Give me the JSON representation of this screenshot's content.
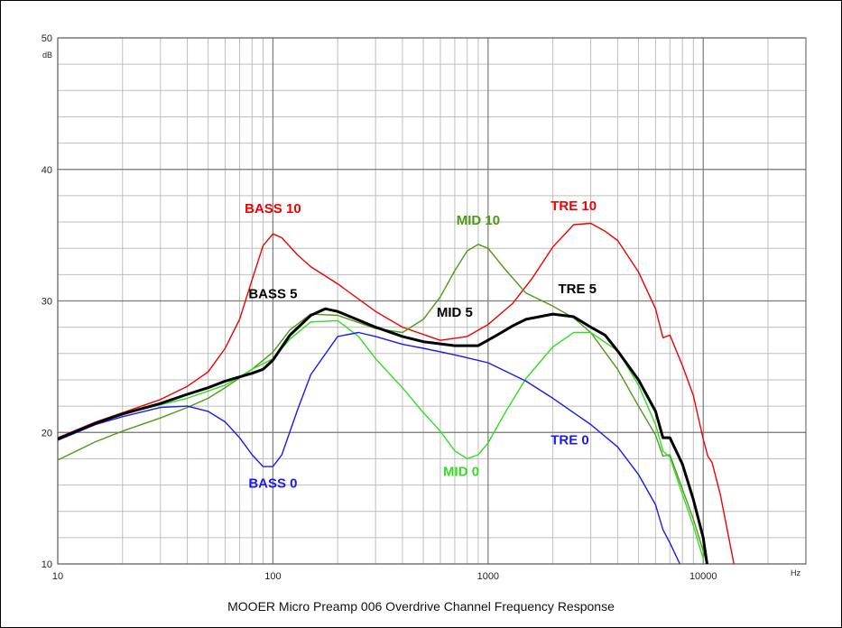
{
  "caption": "MOOER Micro Preamp 006 Overdrive Channel Frequency Response",
  "chart_data": {
    "type": "line",
    "title": "MOOER Micro Preamp 006 Overdrive Channel Frequency Response",
    "x_scale": "log",
    "xlim": [
      10,
      30000
    ],
    "ylim": [
      10,
      50
    ],
    "x_ticks": [
      10,
      100,
      1000,
      10000
    ],
    "x_tick_labels": [
      "10",
      "100",
      "1000",
      "10000"
    ],
    "y_ticks": [
      10,
      20,
      30,
      40,
      50
    ],
    "y_tick_labels": [
      "10",
      "20",
      "30",
      "40",
      "50"
    ],
    "xunit": "Hz",
    "yunit": "dB",
    "grid": true,
    "series": [
      {
        "name": "BASS 10",
        "color": "#ee0000",
        "width": 1.4,
        "label_x": 100,
        "label_y": 36.7,
        "points": [
          [
            10,
            19.6
          ],
          [
            15,
            20.8
          ],
          [
            20,
            21.5
          ],
          [
            30,
            22.5
          ],
          [
            40,
            23.5
          ],
          [
            50,
            24.6
          ],
          [
            60,
            26.4
          ],
          [
            70,
            28.6
          ],
          [
            80,
            31.6
          ],
          [
            90,
            34.2
          ],
          [
            100,
            35.1
          ],
          [
            110,
            34.8
          ],
          [
            130,
            33.5
          ],
          [
            150,
            32.6
          ],
          [
            200,
            31.3
          ],
          [
            300,
            29.2
          ],
          [
            400,
            28.0
          ],
          [
            600,
            27.0
          ],
          [
            800,
            27.3
          ],
          [
            1000,
            28.2
          ],
          [
            1300,
            29.8
          ],
          [
            1600,
            31.7
          ],
          [
            2000,
            34.1
          ],
          [
            2500,
            35.8
          ],
          [
            3000,
            35.9
          ],
          [
            3500,
            35.3
          ],
          [
            4000,
            34.6
          ],
          [
            5000,
            32.2
          ],
          [
            6000,
            29.4
          ],
          [
            6500,
            27.2
          ],
          [
            7000,
            27.4
          ],
          [
            8000,
            25.1
          ],
          [
            9000,
            22.8
          ],
          [
            10000,
            19.5
          ],
          [
            10500,
            18.2
          ],
          [
            11000,
            17.7
          ],
          [
            12000,
            15.3
          ],
          [
            13000,
            12.4
          ],
          [
            14000,
            9.7
          ]
        ]
      },
      {
        "name": "MID 10",
        "color": "#4e9a18",
        "width": 1.4,
        "label_x": 900,
        "label_y": 35.8,
        "points": [
          [
            10,
            17.9
          ],
          [
            15,
            19.3
          ],
          [
            20,
            20.1
          ],
          [
            30,
            21.1
          ],
          [
            40,
            21.9
          ],
          [
            50,
            22.6
          ],
          [
            60,
            23.4
          ],
          [
            80,
            24.8
          ],
          [
            100,
            26.1
          ],
          [
            120,
            27.8
          ],
          [
            150,
            29.0
          ],
          [
            200,
            28.9
          ],
          [
            300,
            27.9
          ],
          [
            400,
            27.6
          ],
          [
            500,
            28.6
          ],
          [
            600,
            30.3
          ],
          [
            700,
            32.3
          ],
          [
            800,
            33.8
          ],
          [
            900,
            34.3
          ],
          [
            1000,
            34.0
          ],
          [
            1200,
            32.4
          ],
          [
            1500,
            30.6
          ],
          [
            2000,
            29.6
          ],
          [
            2500,
            28.7
          ],
          [
            3000,
            27.6
          ],
          [
            4000,
            24.8
          ],
          [
            5000,
            22.0
          ],
          [
            6000,
            19.8
          ],
          [
            6500,
            18.2
          ],
          [
            7000,
            18.3
          ],
          [
            8000,
            15.7
          ],
          [
            9000,
            13.4
          ],
          [
            10000,
            11.0
          ],
          [
            10500,
            9.8
          ]
        ]
      },
      {
        "name": "TRE 10",
        "color": "#ee0000",
        "width": 1.4,
        "label_x": 2500,
        "label_y": 36.9,
        "points": []
      },
      {
        "name": "BASS 5",
        "color": "#000000",
        "width": 3,
        "label_x": 100,
        "label_y": 30.2,
        "points": [
          [
            10,
            19.5
          ],
          [
            15,
            20.7
          ],
          [
            20,
            21.4
          ],
          [
            30,
            22.2
          ],
          [
            40,
            22.9
          ],
          [
            50,
            23.4
          ],
          [
            60,
            23.9
          ],
          [
            80,
            24.5
          ],
          [
            90,
            24.8
          ],
          [
            100,
            25.5
          ],
          [
            120,
            27.4
          ],
          [
            150,
            28.9
          ],
          [
            175,
            29.4
          ],
          [
            200,
            29.2
          ],
          [
            300,
            28.0
          ],
          [
            400,
            27.3
          ],
          [
            500,
            26.9
          ],
          [
            700,
            26.6
          ],
          [
            900,
            26.6
          ],
          [
            1100,
            27.4
          ],
          [
            1300,
            28.1
          ],
          [
            1500,
            28.6
          ],
          [
            2000,
            29.0
          ],
          [
            2500,
            28.8
          ],
          [
            3000,
            28.0
          ],
          [
            3500,
            27.4
          ],
          [
            4000,
            26.2
          ],
          [
            5000,
            24.0
          ],
          [
            6000,
            21.6
          ],
          [
            6500,
            19.6
          ],
          [
            7000,
            19.6
          ],
          [
            8000,
            17.6
          ],
          [
            9000,
            14.9
          ],
          [
            10000,
            12.0
          ],
          [
            10500,
            9.6
          ]
        ]
      },
      {
        "name": "MID 5",
        "color": "#000000",
        "width": 3,
        "label_x": 700,
        "label_y": 28.8,
        "points": []
      },
      {
        "name": "TRE 5",
        "color": "#000000",
        "width": 3,
        "label_x": 2600,
        "label_y": 30.6,
        "points": []
      },
      {
        "name": "MID 0",
        "color": "#33dd22",
        "width": 1.4,
        "label_x": 750,
        "label_y": 16.7,
        "points": [
          [
            10,
            19.5
          ],
          [
            20,
            21.4
          ],
          [
            40,
            22.6
          ],
          [
            60,
            23.6
          ],
          [
            80,
            24.8
          ],
          [
            100,
            25.6
          ],
          [
            120,
            27.1
          ],
          [
            150,
            28.4
          ],
          [
            200,
            28.5
          ],
          [
            250,
            27.3
          ],
          [
            300,
            25.6
          ],
          [
            400,
            23.4
          ],
          [
            500,
            21.5
          ],
          [
            600,
            20.1
          ],
          [
            700,
            18.6
          ],
          [
            800,
            18.0
          ],
          [
            900,
            18.3
          ],
          [
            1000,
            19.2
          ],
          [
            1200,
            21.5
          ],
          [
            1500,
            24.1
          ],
          [
            2000,
            26.5
          ],
          [
            2500,
            27.6
          ],
          [
            3000,
            27.6
          ],
          [
            4000,
            26.2
          ],
          [
            5000,
            23.6
          ],
          [
            6000,
            20.6
          ],
          [
            6500,
            18.6
          ],
          [
            7000,
            18.1
          ],
          [
            8000,
            15.3
          ],
          [
            9000,
            12.9
          ],
          [
            10000,
            10.4
          ]
        ]
      },
      {
        "name": "BASS 0",
        "color": "#1a1aee",
        "width": 1.4,
        "label_x": 100,
        "label_y": 15.8,
        "points": [
          [
            10,
            19.4
          ],
          [
            15,
            20.6
          ],
          [
            20,
            21.2
          ],
          [
            30,
            21.9
          ],
          [
            40,
            22.0
          ],
          [
            50,
            21.6
          ],
          [
            60,
            20.8
          ],
          [
            70,
            19.6
          ],
          [
            80,
            18.3
          ],
          [
            90,
            17.4
          ],
          [
            100,
            17.4
          ],
          [
            110,
            18.3
          ],
          [
            130,
            21.7
          ],
          [
            150,
            24.4
          ],
          [
            200,
            27.3
          ],
          [
            250,
            27.6
          ],
          [
            300,
            27.3
          ],
          [
            400,
            26.7
          ],
          [
            500,
            26.4
          ],
          [
            700,
            25.9
          ],
          [
            1000,
            25.3
          ],
          [
            1500,
            23.9
          ],
          [
            2000,
            22.6
          ],
          [
            3000,
            20.6
          ],
          [
            4000,
            18.9
          ],
          [
            5000,
            16.8
          ],
          [
            6000,
            14.5
          ],
          [
            6500,
            12.6
          ],
          [
            7000,
            11.6
          ],
          [
            8000,
            9.6
          ]
        ]
      },
      {
        "name": "TRE 0",
        "color": "#1a1aee",
        "width": 1.4,
        "label_x": 2400,
        "label_y": 19.1,
        "points": []
      }
    ]
  }
}
